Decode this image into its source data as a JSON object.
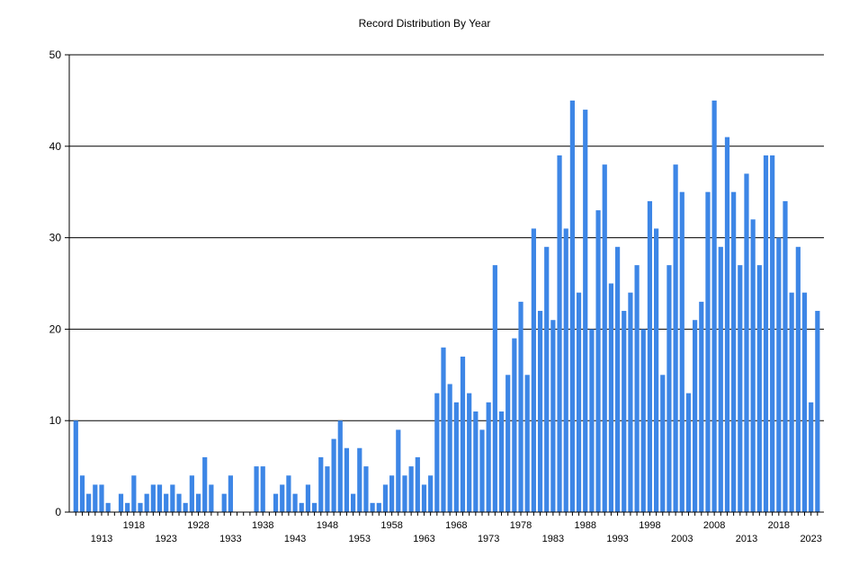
{
  "chart_data": {
    "type": "bar",
    "title": "Record Distribution By Year",
    "xlabel": "",
    "ylabel": "",
    "ylim": [
      0,
      50
    ],
    "yticks": [
      0,
      10,
      20,
      30,
      40,
      50
    ],
    "grid": "horizontal",
    "bar_color": "#3d86e6",
    "x_start": 1909,
    "x_end": 2024,
    "xtick_labels": [
      "1913",
      "1918",
      "1923",
      "1928",
      "1933",
      "1938",
      "1943",
      "1948",
      "1953",
      "1958",
      "1963",
      "1968",
      "1973",
      "1978",
      "1983",
      "1988",
      "1993",
      "1998",
      "2003",
      "2008",
      "2013",
      "2018",
      "2023"
    ],
    "values": [
      10,
      4,
      2,
      3,
      3,
      1,
      0,
      2,
      1,
      4,
      1,
      2,
      3,
      3,
      2,
      3,
      2,
      1,
      4,
      2,
      6,
      3,
      0,
      2,
      4,
      0,
      0,
      0,
      5,
      5,
      0,
      2,
      3,
      4,
      2,
      1,
      3,
      1,
      6,
      5,
      8,
      10,
      7,
      2,
      7,
      5,
      1,
      1,
      3,
      4,
      9,
      4,
      5,
      6,
      3,
      4,
      13,
      18,
      14,
      12,
      17,
      13,
      11,
      9,
      12,
      27,
      11,
      15,
      19,
      23,
      15,
      31,
      22,
      29,
      21,
      39,
      31,
      45,
      24,
      44,
      20,
      33,
      38,
      25,
      29,
      22,
      24,
      27,
      20,
      34,
      31,
      15,
      27,
      38,
      35,
      13,
      21,
      23,
      35,
      45,
      29,
      41,
      35,
      27,
      37,
      32,
      27,
      39,
      39,
      30,
      34,
      24,
      29,
      24,
      12,
      22
    ]
  }
}
